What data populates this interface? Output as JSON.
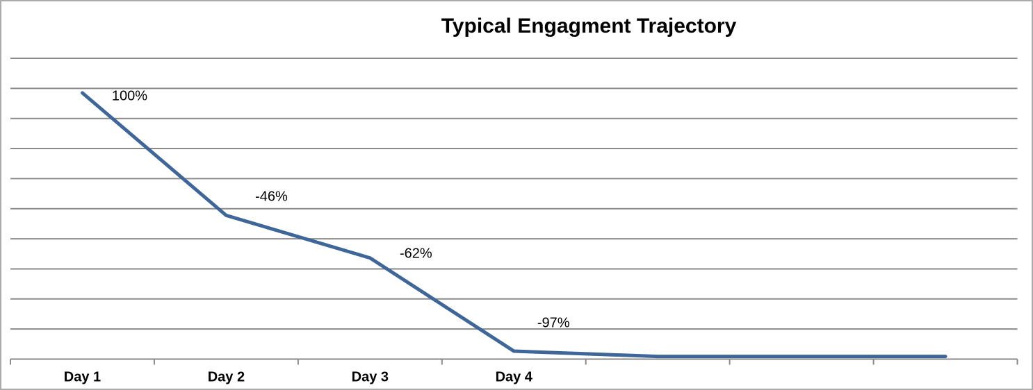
{
  "frame": {
    "background_color": "#FFFFFF",
    "border_color": "#ABABAB"
  },
  "chart_data": {
    "type": "line",
    "title": "Typical Engagment Trajectory",
    "categories": [
      "Day 1",
      "Day 2",
      "Day 3",
      "Day 4",
      "",
      "",
      ""
    ],
    "series": [
      {
        "values": [
          100,
          54,
          38,
          3,
          1,
          1,
          1
        ],
        "point_labels": [
          "100%",
          "-46%",
          "-62%",
          "-97%",
          "",
          "",
          ""
        ],
        "color": "#3E6699"
      }
    ],
    "xlabel": "",
    "ylabel": "",
    "ylim": [
      0,
      113
    ],
    "y_axis_labels_visible": false,
    "gridlines": {
      "horizontal": true,
      "intervals": 10,
      "color": "#8A8A8A"
    },
    "axis_color": "#8A8A8A",
    "legend": {
      "visible": false
    },
    "text_color": "#000000"
  }
}
